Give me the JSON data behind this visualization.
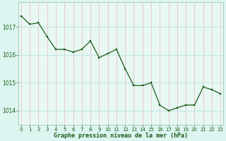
{
  "x": [
    0,
    1,
    2,
    3,
    4,
    5,
    6,
    7,
    8,
    9,
    10,
    11,
    12,
    13,
    14,
    15,
    16,
    17,
    18,
    19,
    20,
    21,
    22,
    23
  ],
  "y": [
    1017.4,
    1017.1,
    1017.15,
    1016.65,
    1016.2,
    1016.2,
    1016.1,
    1016.2,
    1016.5,
    1015.9,
    1016.05,
    1016.2,
    1015.5,
    1014.9,
    1014.9,
    1015.0,
    1014.2,
    1014.0,
    1014.1,
    1014.2,
    1014.2,
    1014.85,
    1014.75,
    1014.6
  ],
  "line_color": "#1a5c1a",
  "marker_color": "#1a5c1a",
  "bg_color": "#ddf5f0",
  "plot_bg_color": "#e8f8f2",
  "vgrid_color": "#e8c8d0",
  "hgrid_color": "#c0e8e0",
  "tick_color": "#1a5c1a",
  "title": "Graphe pression niveau de la mer (hPa)",
  "yticks": [
    1014,
    1015,
    1016,
    1017
  ],
  "xticks": [
    0,
    1,
    2,
    3,
    4,
    5,
    6,
    7,
    8,
    9,
    10,
    11,
    12,
    13,
    14,
    15,
    16,
    17,
    18,
    19,
    20,
    21,
    22,
    23
  ],
  "ylim": [
    1013.5,
    1017.9
  ],
  "xlim": [
    -0.3,
    23.3
  ]
}
